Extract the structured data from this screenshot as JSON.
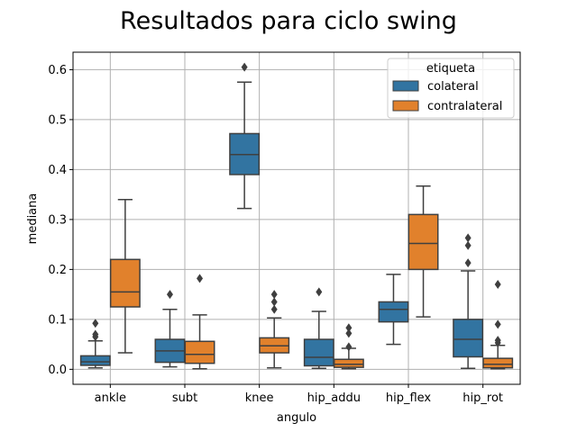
{
  "chart_data": {
    "type": "box",
    "title": "Resultados para ciclo swing",
    "xlabel": "angulo",
    "ylabel": "mediana",
    "ylim": [
      -0.03,
      0.635
    ],
    "yticks": [
      "0.0",
      "0.1",
      "0.2",
      "0.3",
      "0.4",
      "0.5",
      "0.6"
    ],
    "grid": true,
    "categories": [
      "ankle",
      "subt",
      "knee",
      "hip_addu",
      "hip_flex",
      "hip_rot"
    ],
    "legend": {
      "title": "etiqueta",
      "placement": "upper right"
    },
    "series": [
      {
        "name": "colateral",
        "color": "#3274a1",
        "boxes": [
          {
            "whisker_low": 0.003,
            "q1": 0.008,
            "median": 0.015,
            "q3": 0.027,
            "whisker_high": 0.057,
            "outliers": [
              0.065,
              0.07,
              0.092
            ]
          },
          {
            "whisker_low": 0.005,
            "q1": 0.014,
            "median": 0.037,
            "q3": 0.06,
            "whisker_high": 0.12,
            "outliers": [
              0.15
            ]
          },
          {
            "whisker_low": 0.322,
            "q1": 0.39,
            "median": 0.43,
            "q3": 0.472,
            "whisker_high": 0.575,
            "outliers": [
              0.605
            ]
          },
          {
            "whisker_low": 0.002,
            "q1": 0.007,
            "median": 0.024,
            "q3": 0.06,
            "whisker_high": 0.116,
            "outliers": [
              0.155
            ]
          },
          {
            "whisker_low": 0.05,
            "q1": 0.095,
            "median": 0.12,
            "q3": 0.135,
            "whisker_high": 0.19,
            "outliers": []
          },
          {
            "whisker_low": 0.002,
            "q1": 0.025,
            "median": 0.06,
            "q3": 0.1,
            "whisker_high": 0.197,
            "outliers": [
              0.213,
              0.248,
              0.263
            ]
          }
        ]
      },
      {
        "name": "contralateral",
        "color": "#e1812c",
        "boxes": [
          {
            "whisker_low": 0.033,
            "q1": 0.125,
            "median": 0.155,
            "q3": 0.22,
            "whisker_high": 0.34,
            "outliers": []
          },
          {
            "whisker_low": 0.001,
            "q1": 0.012,
            "median": 0.03,
            "q3": 0.056,
            "whisker_high": 0.109,
            "outliers": [
              0.182
            ]
          },
          {
            "whisker_low": 0.003,
            "q1": 0.033,
            "median": 0.047,
            "q3": 0.063,
            "whisker_high": 0.103,
            "outliers": [
              0.12,
              0.135,
              0.15
            ]
          },
          {
            "whisker_low": 0.001,
            "q1": 0.004,
            "median": 0.01,
            "q3": 0.02,
            "whisker_high": 0.042,
            "outliers": [
              0.045,
              0.072,
              0.083
            ]
          },
          {
            "whisker_low": 0.105,
            "q1": 0.2,
            "median": 0.252,
            "q3": 0.31,
            "whisker_high": 0.367,
            "outliers": []
          },
          {
            "whisker_low": 0.001,
            "q1": 0.003,
            "median": 0.01,
            "q3": 0.022,
            "whisker_high": 0.048,
            "outliers": [
              0.053,
              0.058,
              0.09,
              0.17
            ]
          }
        ]
      }
    ]
  }
}
